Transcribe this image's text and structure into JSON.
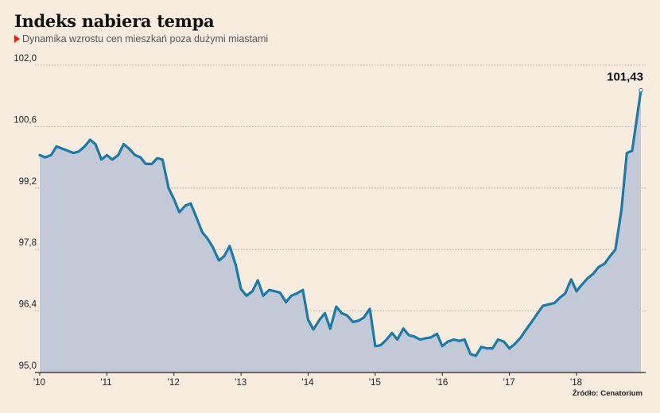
{
  "title": "Indeks nabiera tempa",
  "subtitle": "Dynamika wzrostu cen mieszkań poza dużymi miastami",
  "source": "Źródło: Cenatorium",
  "colors": {
    "line": "#1a7aa8",
    "area": "#c4c9d7",
    "grid": "#9a9a9a",
    "marker": "#e2231a"
  },
  "chart_data": {
    "type": "area",
    "title": "Indeks nabiera tempa",
    "xlabel": "",
    "ylabel": "",
    "ylim": [
      95.0,
      102.0
    ],
    "yticks": [
      "102,0",
      "100,6",
      "99,2",
      "97,8",
      "96,4",
      "95,0"
    ],
    "ytick_values": [
      102.0,
      100.6,
      99.2,
      97.8,
      96.4,
      95.0
    ],
    "xticks": [
      "'10",
      "'11",
      "'12",
      "'13",
      "'14",
      "'15",
      "'16",
      "'17",
      "'18"
    ],
    "xtick_values": [
      2010,
      2011,
      2012,
      2013,
      2014,
      2015,
      2016,
      2017,
      2018
    ],
    "xlim": [
      2010,
      2018.96
    ],
    "grid": "horizontal-dashed",
    "last_value_label": "101,43",
    "series": [
      {
        "values": [
          [
            2010.0,
            99.95
          ],
          [
            2010.08,
            99.9
          ],
          [
            2010.17,
            99.95
          ],
          [
            2010.25,
            100.15
          ],
          [
            2010.33,
            100.1
          ],
          [
            2010.42,
            100.05
          ],
          [
            2010.5,
            100.0
          ],
          [
            2010.58,
            100.03
          ],
          [
            2010.67,
            100.15
          ],
          [
            2010.75,
            100.3
          ],
          [
            2010.83,
            100.2
          ],
          [
            2010.92,
            99.85
          ],
          [
            2011.0,
            99.95
          ],
          [
            2011.08,
            99.85
          ],
          [
            2011.17,
            99.95
          ],
          [
            2011.25,
            100.2
          ],
          [
            2011.33,
            100.1
          ],
          [
            2011.42,
            99.95
          ],
          [
            2011.5,
            99.9
          ],
          [
            2011.58,
            99.75
          ],
          [
            2011.67,
            99.75
          ],
          [
            2011.75,
            99.88
          ],
          [
            2011.83,
            99.85
          ],
          [
            2011.92,
            99.2
          ],
          [
            2012.0,
            98.95
          ],
          [
            2012.08,
            98.65
          ],
          [
            2012.17,
            98.8
          ],
          [
            2012.25,
            98.85
          ],
          [
            2012.33,
            98.55
          ],
          [
            2012.42,
            98.2
          ],
          [
            2012.5,
            98.05
          ],
          [
            2012.58,
            97.85
          ],
          [
            2012.67,
            97.55
          ],
          [
            2012.75,
            97.65
          ],
          [
            2012.83,
            97.88
          ],
          [
            2012.92,
            97.45
          ],
          [
            2013.0,
            96.9
          ],
          [
            2013.08,
            96.75
          ],
          [
            2013.17,
            96.85
          ],
          [
            2013.25,
            97.1
          ],
          [
            2013.33,
            96.75
          ],
          [
            2013.42,
            96.88
          ],
          [
            2013.5,
            96.85
          ],
          [
            2013.58,
            96.82
          ],
          [
            2013.67,
            96.6
          ],
          [
            2013.75,
            96.75
          ],
          [
            2013.83,
            96.8
          ],
          [
            2013.92,
            96.88
          ],
          [
            2014.0,
            96.2
          ],
          [
            2014.08,
            95.98
          ],
          [
            2014.17,
            96.2
          ],
          [
            2014.25,
            96.35
          ],
          [
            2014.33,
            96.0
          ],
          [
            2014.42,
            96.5
          ],
          [
            2014.5,
            96.35
          ],
          [
            2014.58,
            96.3
          ],
          [
            2014.67,
            96.15
          ],
          [
            2014.75,
            96.18
          ],
          [
            2014.83,
            96.25
          ],
          [
            2014.92,
            96.45
          ],
          [
            2015.0,
            95.6
          ],
          [
            2015.08,
            95.62
          ],
          [
            2015.17,
            95.75
          ],
          [
            2015.25,
            95.9
          ],
          [
            2015.33,
            95.75
          ],
          [
            2015.42,
            96.0
          ],
          [
            2015.5,
            95.85
          ],
          [
            2015.58,
            95.82
          ],
          [
            2015.67,
            95.75
          ],
          [
            2015.75,
            95.78
          ],
          [
            2015.83,
            95.8
          ],
          [
            2015.92,
            95.88
          ],
          [
            2016.0,
            95.6
          ],
          [
            2016.08,
            95.7
          ],
          [
            2016.17,
            95.75
          ],
          [
            2016.25,
            95.72
          ],
          [
            2016.33,
            95.75
          ],
          [
            2016.42,
            95.42
          ],
          [
            2016.5,
            95.38
          ],
          [
            2016.58,
            95.58
          ],
          [
            2016.67,
            95.55
          ],
          [
            2016.75,
            95.55
          ],
          [
            2016.83,
            95.75
          ],
          [
            2016.92,
            95.7
          ],
          [
            2017.0,
            95.55
          ],
          [
            2017.08,
            95.65
          ],
          [
            2017.17,
            95.8
          ],
          [
            2017.25,
            95.98
          ],
          [
            2017.33,
            96.15
          ],
          [
            2017.42,
            96.35
          ],
          [
            2017.5,
            96.52
          ],
          [
            2017.58,
            96.55
          ],
          [
            2017.67,
            96.58
          ],
          [
            2017.75,
            96.7
          ],
          [
            2017.83,
            96.8
          ],
          [
            2017.92,
            97.12
          ],
          [
            2018.0,
            96.85
          ],
          [
            2018.08,
            97.0
          ],
          [
            2018.17,
            97.15
          ],
          [
            2018.25,
            97.25
          ],
          [
            2018.33,
            97.4
          ],
          [
            2018.42,
            97.48
          ],
          [
            2018.5,
            97.65
          ],
          [
            2018.58,
            97.8
          ],
          [
            2018.67,
            98.7
          ],
          [
            2018.75,
            100.0
          ],
          [
            2018.83,
            100.05
          ],
          [
            2018.96,
            101.43
          ]
        ]
      }
    ]
  }
}
